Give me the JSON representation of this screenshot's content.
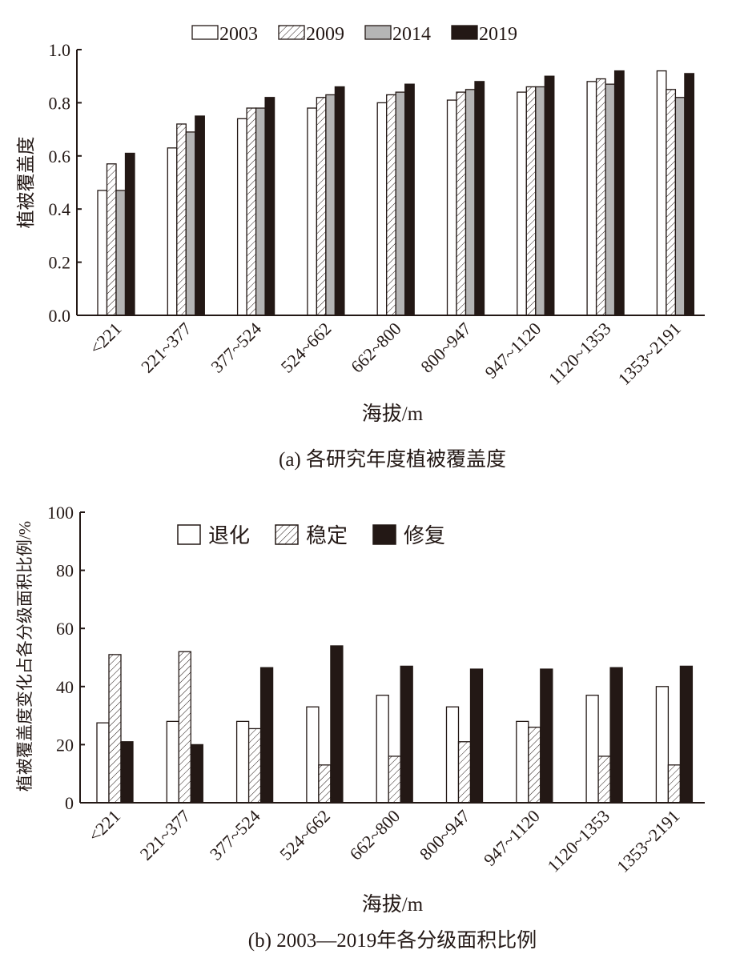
{
  "chart_data": [
    {
      "type": "bar",
      "title": "(a) 各研究年度植被覆盖度",
      "xlabel": "海拔/m",
      "ylabel": "植被覆盖度",
      "ylim": [
        0,
        1.0
      ],
      "yticks": [
        "0.0",
        "0.2",
        "0.4",
        "0.6",
        "0.8",
        "1.0"
      ],
      "ytick_values": [
        0,
        0.2,
        0.4,
        0.6,
        0.8,
        1.0
      ],
      "legend_position": "top-center",
      "categories": [
        "<221",
        "221~377",
        "377~524",
        "524~662",
        "662~800",
        "800~947",
        "947~1120",
        "1120~1353",
        "1353~2191"
      ],
      "series": [
        {
          "name": "2003",
          "style": "white",
          "values": [
            0.47,
            0.63,
            0.74,
            0.78,
            0.8,
            0.81,
            0.84,
            0.88,
            0.92
          ]
        },
        {
          "name": "2009",
          "style": "hatch",
          "values": [
            0.57,
            0.72,
            0.78,
            0.82,
            0.83,
            0.84,
            0.86,
            0.89,
            0.85
          ]
        },
        {
          "name": "2014",
          "style": "gray",
          "values": [
            0.47,
            0.69,
            0.78,
            0.83,
            0.84,
            0.85,
            0.86,
            0.87,
            0.82
          ]
        },
        {
          "name": "2019",
          "style": "black",
          "values": [
            0.61,
            0.75,
            0.82,
            0.86,
            0.87,
            0.88,
            0.9,
            0.92,
            0.91
          ]
        }
      ]
    },
    {
      "type": "bar",
      "title": "(b) 2003—2019年各分级面积比例",
      "xlabel": "海拔/m",
      "ylabel": "植被覆盖度变化占各分级面积比例/%",
      "ylim": [
        0,
        100
      ],
      "yticks": [
        "0",
        "20",
        "40",
        "60",
        "80",
        "100"
      ],
      "ytick_values": [
        0,
        20,
        40,
        60,
        80,
        100
      ],
      "legend_position": "top-left",
      "categories": [
        "<221",
        "221~377",
        "377~524",
        "524~662",
        "662~800",
        "800~947",
        "947~1120",
        "1120~1353",
        "1353~2191"
      ],
      "series": [
        {
          "name": "退化",
          "style": "white",
          "values": [
            27.5,
            28,
            28,
            33,
            37,
            33,
            28,
            37,
            40
          ]
        },
        {
          "name": "稳定",
          "style": "hatch",
          "values": [
            51,
            52,
            25.5,
            13,
            16,
            21,
            26,
            16,
            13
          ]
        },
        {
          "name": "修复",
          "style": "black",
          "values": [
            21,
            20,
            46.5,
            54,
            47,
            46,
            46,
            46.5,
            47
          ]
        }
      ]
    }
  ],
  "colors": {
    "white": "#ffffff",
    "gray": "#b5b5b5",
    "black": "#231815",
    "stroke": "#231815"
  }
}
